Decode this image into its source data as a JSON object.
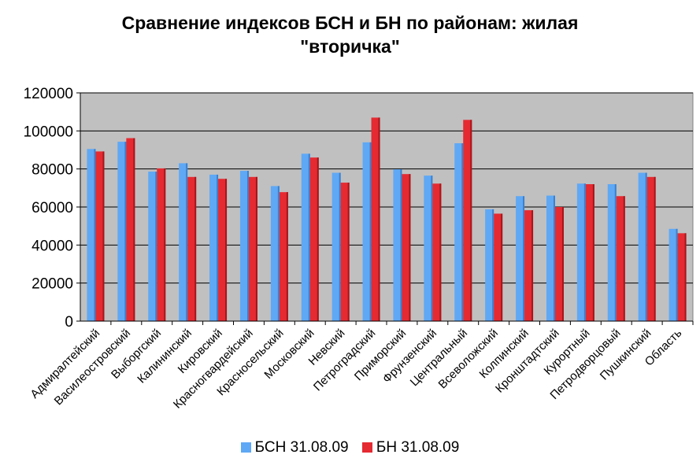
{
  "chart_data": {
    "type": "bar",
    "title_lines": [
      "Сравнение индексов БСН и БН по районам: жилая",
      "\"вторичка\""
    ],
    "categories": [
      "Адмиралтейский",
      "Василеостровский",
      "Выборгский",
      "Калининский",
      "Кировский",
      "Красногвардейский",
      "Красносельский",
      "Московский",
      "Невский",
      "Петроградский",
      "Приморский",
      "Фрунзенский",
      "Центральный",
      "Всеволожский",
      "Колпинский",
      "Кронштадтский",
      "Курортный",
      "Петродворцовый",
      "Пушкинский",
      "Область"
    ],
    "series": [
      {
        "name": "БСН 31.08.09",
        "color": "#5fa8f5",
        "values": [
          90500,
          94300,
          78600,
          83000,
          77000,
          79000,
          71000,
          88000,
          78000,
          94000,
          79800,
          76500,
          93500,
          58800,
          65700,
          66000,
          72300,
          72000,
          78000,
          48500
        ]
      },
      {
        "name": "БН 31.08.09",
        "color": "#e52a32",
        "values": [
          89200,
          96200,
          80300,
          75800,
          74800,
          75800,
          67800,
          86000,
          72800,
          107000,
          77300,
          72300,
          105800,
          56500,
          58300,
          60000,
          72000,
          65700,
          75800,
          46200
        ]
      }
    ],
    "ylim": [
      0,
      120000
    ],
    "yticks": [
      "0",
      "20000",
      "40000",
      "60000",
      "80000",
      "100000",
      "120000"
    ],
    "grid": true,
    "legend_position": "bottom"
  }
}
